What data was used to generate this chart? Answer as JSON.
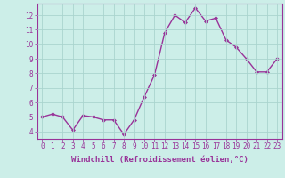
{
  "x": [
    0,
    1,
    2,
    3,
    4,
    5,
    6,
    7,
    8,
    9,
    10,
    11,
    12,
    13,
    14,
    15,
    16,
    17,
    18,
    19,
    20,
    21,
    22,
    23
  ],
  "y": [
    5.0,
    5.2,
    5.0,
    4.1,
    5.1,
    5.0,
    4.8,
    4.8,
    3.8,
    4.8,
    6.4,
    7.9,
    10.8,
    12.0,
    11.5,
    12.5,
    11.6,
    11.8,
    10.3,
    9.8,
    9.0,
    8.1,
    8.1,
    9.0
  ],
  "line_color": "#993399",
  "marker": "D",
  "marker_size": 2,
  "bg_color": "#cceee8",
  "grid_color": "#aad4ce",
  "tick_color": "#993399",
  "label_color": "#993399",
  "xlabel": "Windchill (Refroidissement éolien,°C)",
  "xlim": [
    -0.5,
    23.5
  ],
  "ylim": [
    3.5,
    12.8
  ],
  "yticks": [
    4,
    5,
    6,
    7,
    8,
    9,
    10,
    11,
    12
  ],
  "xticks": [
    0,
    1,
    2,
    3,
    4,
    5,
    6,
    7,
    8,
    9,
    10,
    11,
    12,
    13,
    14,
    15,
    16,
    17,
    18,
    19,
    20,
    21,
    22,
    23
  ],
  "tick_fontsize": 5.5,
  "xlabel_fontsize": 6.5,
  "line_width": 1.0
}
